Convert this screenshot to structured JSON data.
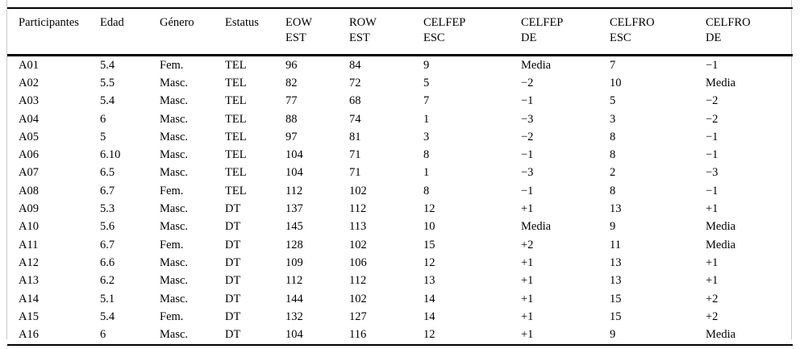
{
  "table": {
    "columns": [
      {
        "line1": "Participantes",
        "line2": ""
      },
      {
        "line1": "Edad",
        "line2": ""
      },
      {
        "line1": "Género",
        "line2": ""
      },
      {
        "line1": "Estatus",
        "line2": ""
      },
      {
        "line1": "EOW",
        "line2": "EST"
      },
      {
        "line1": "ROW",
        "line2": "EST"
      },
      {
        "line1": "CELFEP",
        "line2": "ESC"
      },
      {
        "line1": "CELFEP",
        "line2": "DE"
      },
      {
        "line1": "CELFRO",
        "line2": "ESC"
      },
      {
        "line1": "CELFRO",
        "line2": "DE"
      }
    ],
    "rows": [
      [
        "A01",
        "5.4",
        "Fem.",
        "TEL",
        "96",
        "84",
        "9",
        "Media",
        "7",
        "−1"
      ],
      [
        "A02",
        "5.5",
        "Masc.",
        "TEL",
        "82",
        "72",
        "5",
        "−2",
        "10",
        "Media"
      ],
      [
        "A03",
        "5.4",
        "Masc.",
        "TEL",
        "77",
        "68",
        "7",
        "−1",
        "5",
        "−2"
      ],
      [
        "A04",
        "6",
        "Masc.",
        "TEL",
        "88",
        "74",
        "1",
        "−3",
        "3",
        "−2"
      ],
      [
        "A05",
        "5",
        "Masc.",
        "TEL",
        "97",
        "81",
        "3",
        "−2",
        "8",
        "−1"
      ],
      [
        "A06",
        "6.10",
        "Masc.",
        "TEL",
        "104",
        "71",
        "8",
        "−1",
        "8",
        "−1"
      ],
      [
        "A07",
        "6.5",
        "Masc.",
        "TEL",
        "104",
        "71",
        "1",
        "−3",
        "2",
        "−3"
      ],
      [
        "A08",
        "6.7",
        "Fem.",
        "TEL",
        "112",
        "102",
        "8",
        "−1",
        "8",
        "−1"
      ],
      [
        "A09",
        "5.3",
        "Masc.",
        "DT",
        "137",
        "112",
        "12",
        "+1",
        "13",
        "+1"
      ],
      [
        "A10",
        "5.6",
        "Masc.",
        "DT",
        "145",
        "113",
        "10",
        "Media",
        "9",
        "Media"
      ],
      [
        "A11",
        "6.7",
        "Fem.",
        "DT",
        "128",
        "102",
        "15",
        "+2",
        "11",
        "Media"
      ],
      [
        "A12",
        "6.6",
        "Masc.",
        "DT",
        "109",
        "106",
        "12",
        "+1",
        "13",
        "+1"
      ],
      [
        "A13",
        "6.2",
        "Masc.",
        "DT",
        "112",
        "112",
        "13",
        "+1",
        "13",
        "+1"
      ],
      [
        "A14",
        "5.1",
        "Masc.",
        "DT",
        "144",
        "102",
        "14",
        "+1",
        "15",
        "+2"
      ],
      [
        "A15",
        "5.4",
        "Fem.",
        "DT",
        "132",
        "127",
        "14",
        "+1",
        "15",
        "+2"
      ],
      [
        "A16",
        "6",
        "Masc.",
        "DT",
        "104",
        "116",
        "12",
        "+1",
        "9",
        "Media"
      ]
    ]
  }
}
